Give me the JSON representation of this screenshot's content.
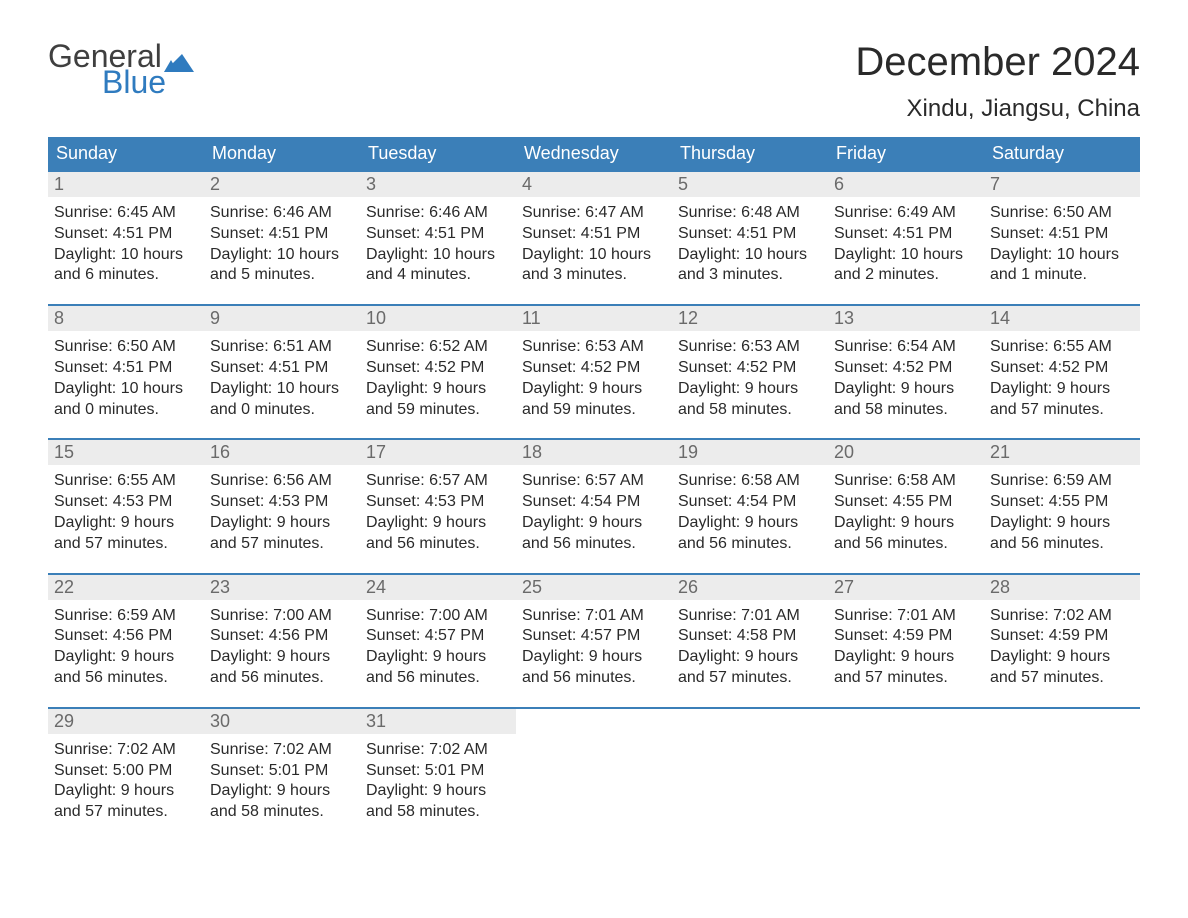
{
  "brand": {
    "word1": "General",
    "word2": "Blue",
    "flag_color": "#2f7bbf",
    "word1_color": "#3f3f3f",
    "word2_color": "#2f7bbf"
  },
  "title": "December 2024",
  "location": "Xindu, Jiangsu, China",
  "colors": {
    "header_bg": "#3b7fb8",
    "header_text": "#ffffff",
    "daynum_bg": "#ececec",
    "daynum_text": "#6a6a6a",
    "body_text": "#2a2a2a",
    "week_border": "#3b7fb8",
    "page_bg": "#ffffff"
  },
  "weekdays": [
    "Sunday",
    "Monday",
    "Tuesday",
    "Wednesday",
    "Thursday",
    "Friday",
    "Saturday"
  ],
  "labels": {
    "sunrise": "Sunrise:",
    "sunset": "Sunset:",
    "daylight": "Daylight:"
  },
  "weeks": [
    [
      {
        "n": "1",
        "sunrise": "6:45 AM",
        "sunset": "4:51 PM",
        "daylight1": "10 hours",
        "daylight2": "and 6 minutes."
      },
      {
        "n": "2",
        "sunrise": "6:46 AM",
        "sunset": "4:51 PM",
        "daylight1": "10 hours",
        "daylight2": "and 5 minutes."
      },
      {
        "n": "3",
        "sunrise": "6:46 AM",
        "sunset": "4:51 PM",
        "daylight1": "10 hours",
        "daylight2": "and 4 minutes."
      },
      {
        "n": "4",
        "sunrise": "6:47 AM",
        "sunset": "4:51 PM",
        "daylight1": "10 hours",
        "daylight2": "and 3 minutes."
      },
      {
        "n": "5",
        "sunrise": "6:48 AM",
        "sunset": "4:51 PM",
        "daylight1": "10 hours",
        "daylight2": "and 3 minutes."
      },
      {
        "n": "6",
        "sunrise": "6:49 AM",
        "sunset": "4:51 PM",
        "daylight1": "10 hours",
        "daylight2": "and 2 minutes."
      },
      {
        "n": "7",
        "sunrise": "6:50 AM",
        "sunset": "4:51 PM",
        "daylight1": "10 hours",
        "daylight2": "and 1 minute."
      }
    ],
    [
      {
        "n": "8",
        "sunrise": "6:50 AM",
        "sunset": "4:51 PM",
        "daylight1": "10 hours",
        "daylight2": "and 0 minutes."
      },
      {
        "n": "9",
        "sunrise": "6:51 AM",
        "sunset": "4:51 PM",
        "daylight1": "10 hours",
        "daylight2": "and 0 minutes."
      },
      {
        "n": "10",
        "sunrise": "6:52 AM",
        "sunset": "4:52 PM",
        "daylight1": "9 hours",
        "daylight2": "and 59 minutes."
      },
      {
        "n": "11",
        "sunrise": "6:53 AM",
        "sunset": "4:52 PM",
        "daylight1": "9 hours",
        "daylight2": "and 59 minutes."
      },
      {
        "n": "12",
        "sunrise": "6:53 AM",
        "sunset": "4:52 PM",
        "daylight1": "9 hours",
        "daylight2": "and 58 minutes."
      },
      {
        "n": "13",
        "sunrise": "6:54 AM",
        "sunset": "4:52 PM",
        "daylight1": "9 hours",
        "daylight2": "and 58 minutes."
      },
      {
        "n": "14",
        "sunrise": "6:55 AM",
        "sunset": "4:52 PM",
        "daylight1": "9 hours",
        "daylight2": "and 57 minutes."
      }
    ],
    [
      {
        "n": "15",
        "sunrise": "6:55 AM",
        "sunset": "4:53 PM",
        "daylight1": "9 hours",
        "daylight2": "and 57 minutes."
      },
      {
        "n": "16",
        "sunrise": "6:56 AM",
        "sunset": "4:53 PM",
        "daylight1": "9 hours",
        "daylight2": "and 57 minutes."
      },
      {
        "n": "17",
        "sunrise": "6:57 AM",
        "sunset": "4:53 PM",
        "daylight1": "9 hours",
        "daylight2": "and 56 minutes."
      },
      {
        "n": "18",
        "sunrise": "6:57 AM",
        "sunset": "4:54 PM",
        "daylight1": "9 hours",
        "daylight2": "and 56 minutes."
      },
      {
        "n": "19",
        "sunrise": "6:58 AM",
        "sunset": "4:54 PM",
        "daylight1": "9 hours",
        "daylight2": "and 56 minutes."
      },
      {
        "n": "20",
        "sunrise": "6:58 AM",
        "sunset": "4:55 PM",
        "daylight1": "9 hours",
        "daylight2": "and 56 minutes."
      },
      {
        "n": "21",
        "sunrise": "6:59 AM",
        "sunset": "4:55 PM",
        "daylight1": "9 hours",
        "daylight2": "and 56 minutes."
      }
    ],
    [
      {
        "n": "22",
        "sunrise": "6:59 AM",
        "sunset": "4:56 PM",
        "daylight1": "9 hours",
        "daylight2": "and 56 minutes."
      },
      {
        "n": "23",
        "sunrise": "7:00 AM",
        "sunset": "4:56 PM",
        "daylight1": "9 hours",
        "daylight2": "and 56 minutes."
      },
      {
        "n": "24",
        "sunrise": "7:00 AM",
        "sunset": "4:57 PM",
        "daylight1": "9 hours",
        "daylight2": "and 56 minutes."
      },
      {
        "n": "25",
        "sunrise": "7:01 AM",
        "sunset": "4:57 PM",
        "daylight1": "9 hours",
        "daylight2": "and 56 minutes."
      },
      {
        "n": "26",
        "sunrise": "7:01 AM",
        "sunset": "4:58 PM",
        "daylight1": "9 hours",
        "daylight2": "and 57 minutes."
      },
      {
        "n": "27",
        "sunrise": "7:01 AM",
        "sunset": "4:59 PM",
        "daylight1": "9 hours",
        "daylight2": "and 57 minutes."
      },
      {
        "n": "28",
        "sunrise": "7:02 AM",
        "sunset": "4:59 PM",
        "daylight1": "9 hours",
        "daylight2": "and 57 minutes."
      }
    ],
    [
      {
        "n": "29",
        "sunrise": "7:02 AM",
        "sunset": "5:00 PM",
        "daylight1": "9 hours",
        "daylight2": "and 57 minutes."
      },
      {
        "n": "30",
        "sunrise": "7:02 AM",
        "sunset": "5:01 PM",
        "daylight1": "9 hours",
        "daylight2": "and 58 minutes."
      },
      {
        "n": "31",
        "sunrise": "7:02 AM",
        "sunset": "5:01 PM",
        "daylight1": "9 hours",
        "daylight2": "and 58 minutes."
      },
      {
        "empty": true
      },
      {
        "empty": true
      },
      {
        "empty": true
      },
      {
        "empty": true
      }
    ]
  ]
}
